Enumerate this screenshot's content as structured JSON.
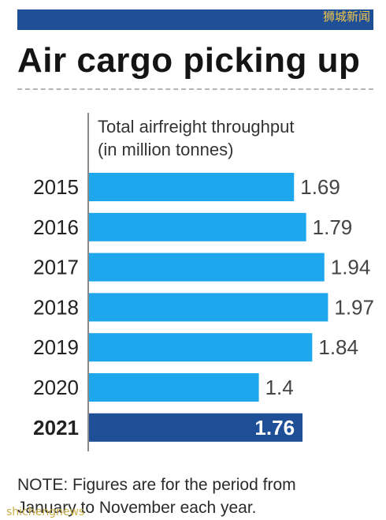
{
  "watermark": "狮城新闻",
  "bottom_watermark": "shichengnews",
  "headline": "Air cargo picking up",
  "note": "NOTE: Figures are for the period from\nJanuary to November each year.",
  "colors": {
    "header_bar": "#1f4f97",
    "bar": "#1ea7ec",
    "highlight_bar": "#1f4f97"
  },
  "chart_data": {
    "type": "bar",
    "orientation": "horizontal",
    "title": "Total airfreight throughput\n(in million tonnes)",
    "categories": [
      "2015",
      "2016",
      "2017",
      "2018",
      "2019",
      "2020",
      "2021"
    ],
    "values": [
      1.69,
      1.79,
      1.94,
      1.97,
      1.84,
      1.4,
      1.76
    ],
    "labels": [
      "1.69",
      "1.79",
      "1.94",
      "1.97",
      "1.84",
      "1.4",
      "1.76"
    ],
    "highlight": "2021",
    "xlim": [
      0,
      2.0
    ]
  }
}
